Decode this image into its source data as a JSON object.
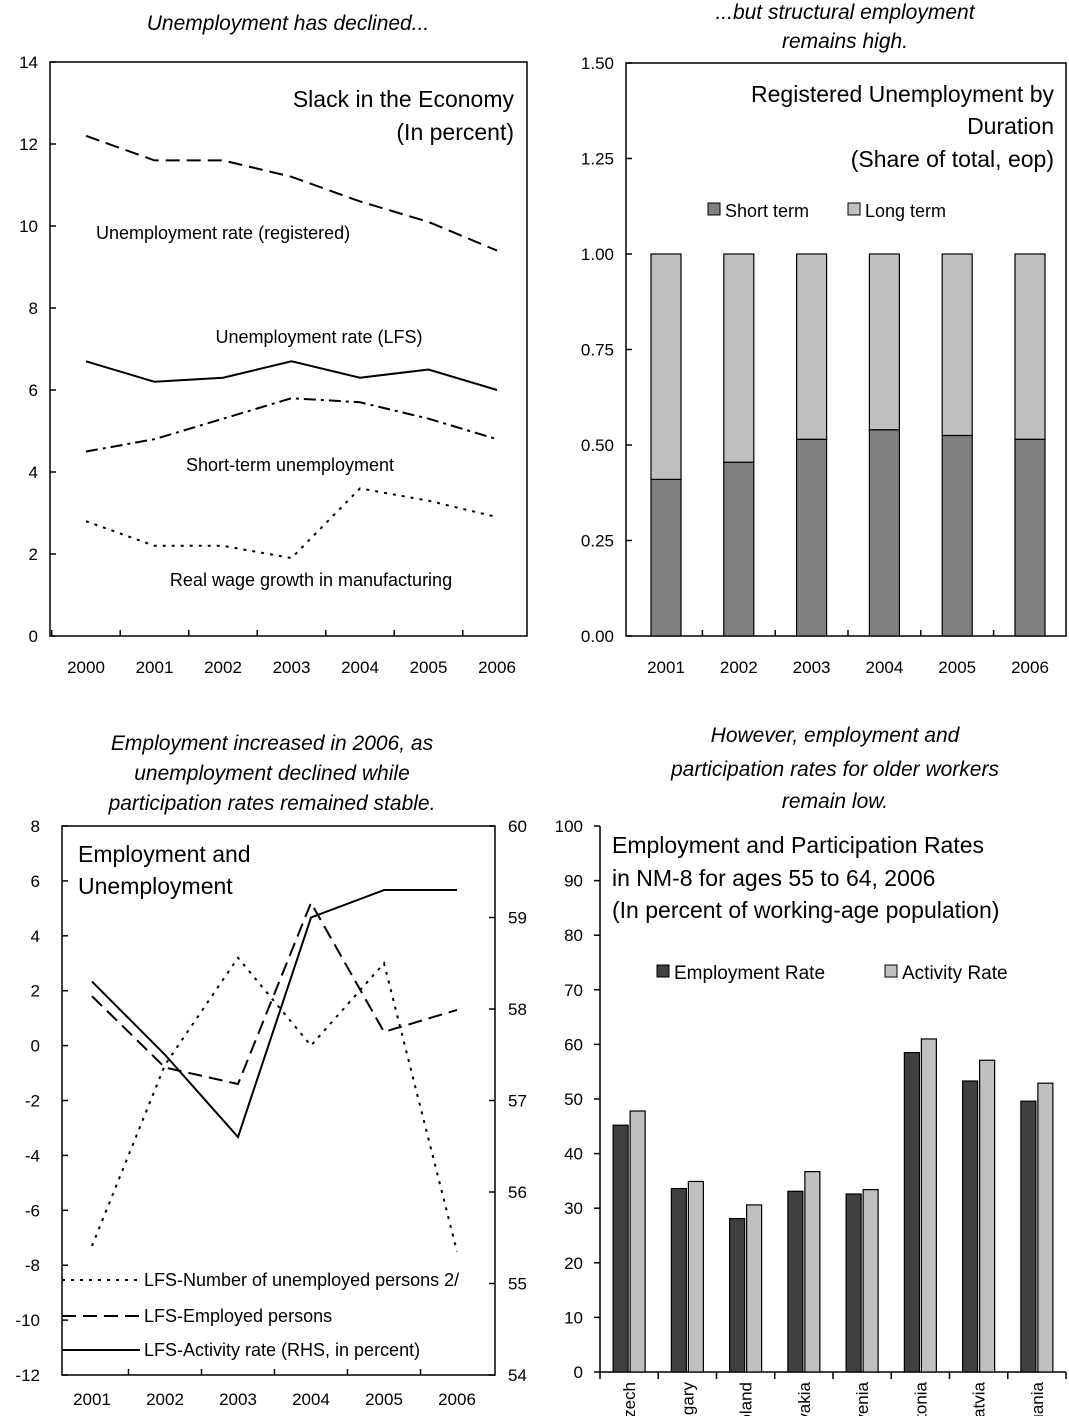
{
  "colors": {
    "short_term": "#7f7f7f",
    "long_term": "#c0c0c0",
    "employment_rate": "#404040",
    "activity_rate": "#c0c0c0",
    "line": "#000000"
  },
  "panels": [
    {
      "subtitle_lines": [
        "Unemployment has declined..."
      ],
      "title_lines": [
        "Slack in the Economy",
        "(In percent)"
      ]
    },
    {
      "subtitle_lines": [
        "...but structural employment",
        "remains high."
      ],
      "title_lines": [
        "Registered Unemployment by",
        "Duration",
        "(Share of total, eop)"
      ]
    },
    {
      "subtitle_lines": [
        "Employment increased in 2006, as",
        "unemployment declined while",
        "participation rates remained stable."
      ],
      "title_lines": [
        "Employment and",
        "Unemployment"
      ]
    },
    {
      "subtitle_lines": [
        "However, employment and",
        "participation rates for older workers",
        "remain low."
      ],
      "title_lines": [
        "Employment and Participation Rates",
        "in NM-8 for ages 55 to 64, 2006",
        "(In percent of working-age population)"
      ]
    }
  ],
  "chart_data": [
    {
      "type": "line",
      "x": [
        "2000",
        "2001",
        "2002",
        "2003",
        "2004",
        "2005",
        "2006"
      ],
      "ylim": [
        0,
        14
      ],
      "yticks": [
        "0",
        "2",
        "4",
        "6",
        "8",
        "10",
        "12",
        "14"
      ],
      "series": [
        {
          "name": "Unemployment rate (registered)",
          "style": "dashed",
          "values": [
            12.2,
            11.6,
            11.6,
            11.2,
            10.6,
            10.1,
            9.4
          ]
        },
        {
          "name": "Unemployment rate (LFS)",
          "style": "solid",
          "values": [
            6.7,
            6.2,
            6.3,
            6.7,
            6.3,
            6.5,
            6.0
          ]
        },
        {
          "name": "Short-term unemployment",
          "style": "dashdot",
          "values": [
            4.5,
            4.8,
            5.3,
            5.8,
            5.7,
            5.3,
            4.8
          ]
        },
        {
          "name": "Real wage growth in manufacturing",
          "style": "dotted",
          "values": [
            2.8,
            2.2,
            2.2,
            1.9,
            3.6,
            3.3,
            2.9
          ]
        }
      ]
    },
    {
      "type": "bar",
      "stacked": true,
      "categories": [
        "2001",
        "2002",
        "2003",
        "2004",
        "2005",
        "2006"
      ],
      "ylim": [
        0,
        1.5
      ],
      "yticks": [
        "0.00",
        "0.25",
        "0.50",
        "0.75",
        "1.00",
        "1.25",
        "1.50"
      ],
      "legend": [
        "Short term",
        "Long term"
      ],
      "series": [
        {
          "name": "Short term",
          "values": [
            0.41,
            0.455,
            0.515,
            0.54,
            0.525,
            0.515
          ]
        },
        {
          "name": "Long term",
          "values": [
            0.59,
            0.545,
            0.485,
            0.46,
            0.475,
            0.485
          ]
        }
      ]
    },
    {
      "type": "line",
      "x": [
        "2001",
        "2002",
        "2003",
        "2004",
        "2005",
        "2006"
      ],
      "ylim": [
        -12,
        8
      ],
      "yticks": [
        "-12",
        "-10",
        "-8",
        "-6",
        "-4",
        "-2",
        "0",
        "2",
        "4",
        "6",
        "8"
      ],
      "y2lim": [
        54,
        60
      ],
      "y2ticks": [
        "54",
        "55",
        "56",
        "57",
        "58",
        "59",
        "60"
      ],
      "series": [
        {
          "name": "LFS-Number of unemployed persons 2/",
          "style": "dotted",
          "axis": "left",
          "values": [
            -7.3,
            -0.7,
            3.2,
            0.0,
            3.0,
            -7.5
          ]
        },
        {
          "name": "LFS-Employed persons",
          "style": "dashed",
          "axis": "left",
          "values": [
            1.8,
            -0.8,
            -1.4,
            5.2,
            0.5,
            1.3
          ]
        },
        {
          "name": "LFS-Activity rate (RHS, in percent)",
          "style": "solid",
          "axis": "right",
          "values": [
            58.3,
            57.5,
            56.6,
            59.0,
            59.3,
            59.3
          ]
        }
      ]
    },
    {
      "type": "bar",
      "categories": [
        "Czech",
        "Hungary",
        "Poland",
        "Slovakia",
        "Slovenia",
        "Estonia",
        "Latvia",
        "Lithuania"
      ],
      "ylim": [
        0,
        100
      ],
      "yticks": [
        "0",
        "10",
        "20",
        "30",
        "40",
        "50",
        "60",
        "70",
        "80",
        "90",
        "100"
      ],
      "legend": [
        "Employment Rate",
        "Activity Rate"
      ],
      "series": [
        {
          "name": "Employment Rate",
          "values": [
            45.2,
            33.6,
            28.1,
            33.1,
            32.6,
            58.5,
            53.3,
            49.6
          ]
        },
        {
          "name": "Activity Rate",
          "values": [
            47.8,
            34.9,
            30.6,
            36.7,
            33.4,
            61.0,
            57.1,
            52.9
          ]
        }
      ]
    }
  ]
}
